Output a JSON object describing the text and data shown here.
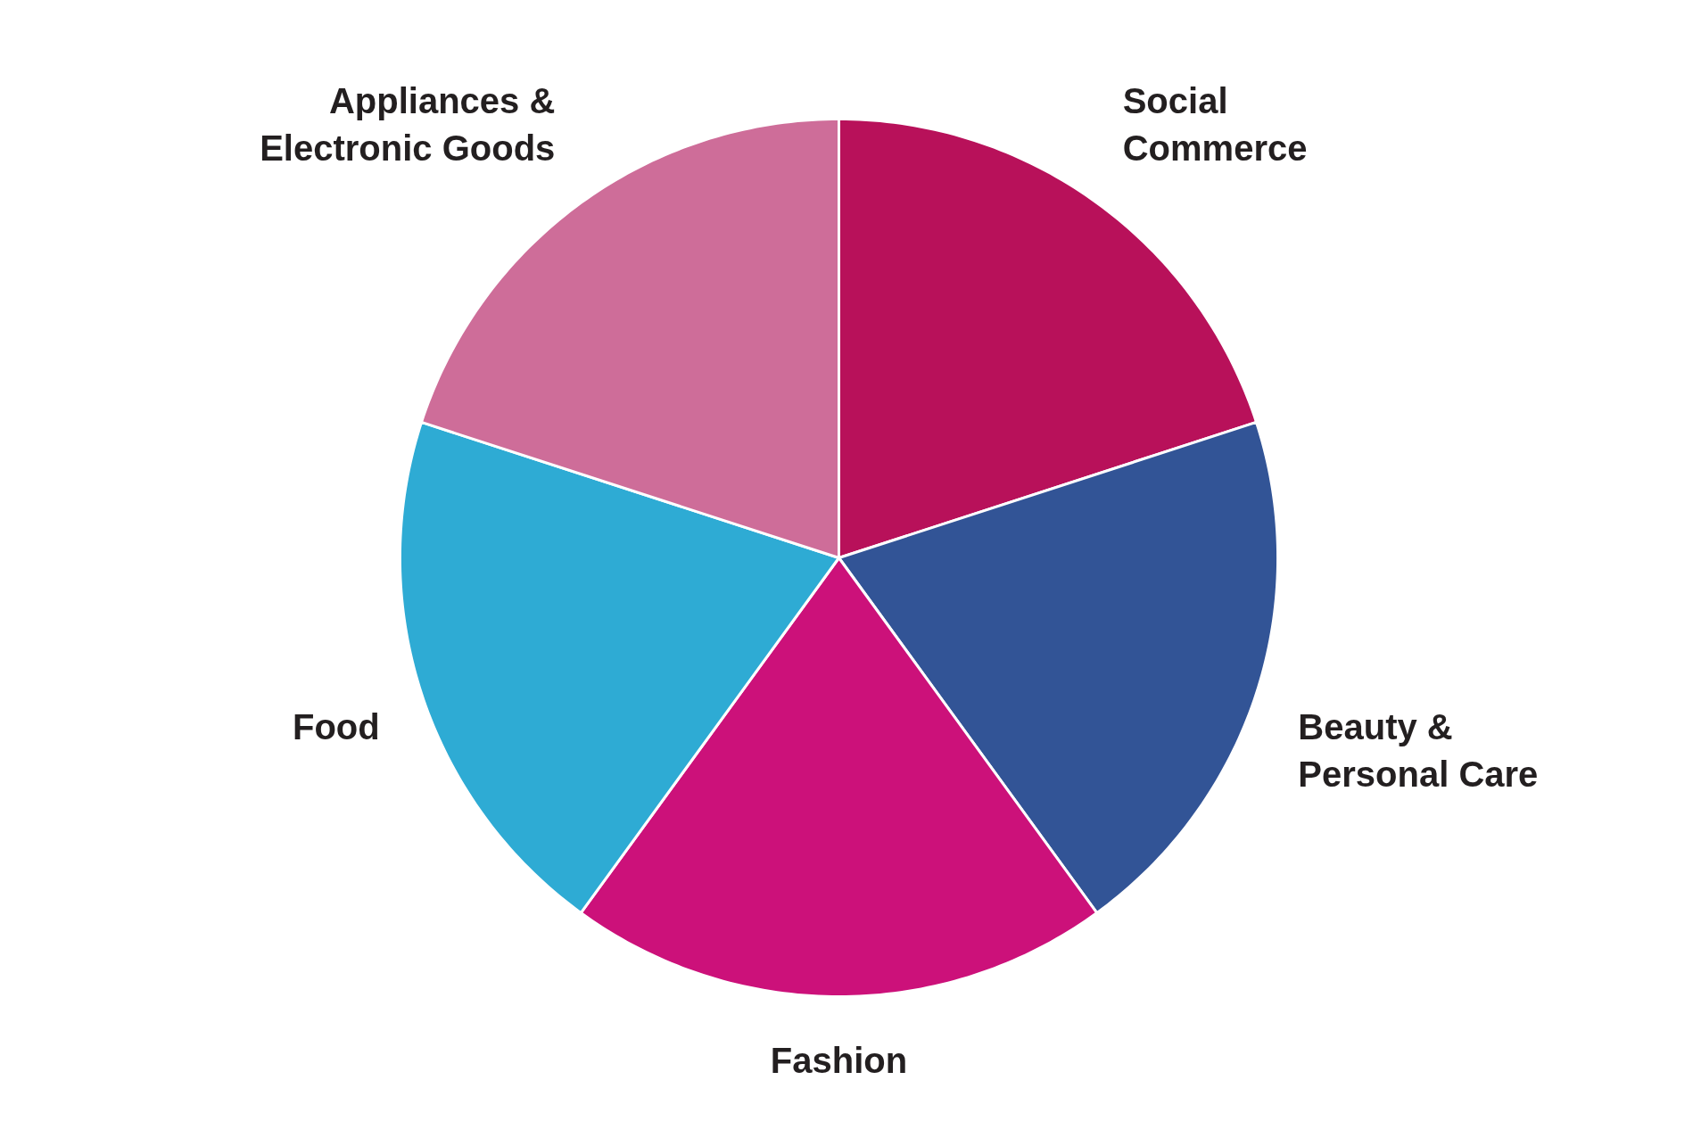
{
  "chart_data": {
    "type": "pie",
    "categories": [
      "Social Commerce",
      "Beauty & Personal Care",
      "Fashion",
      "Food",
      "Appliances & Electronic Goods"
    ],
    "values": [
      20,
      20,
      20,
      20,
      20
    ],
    "colors": [
      "#b8115a",
      "#325496",
      "#cc117a",
      "#2eabd4",
      "#ce6d99"
    ],
    "legend": false
  }
}
